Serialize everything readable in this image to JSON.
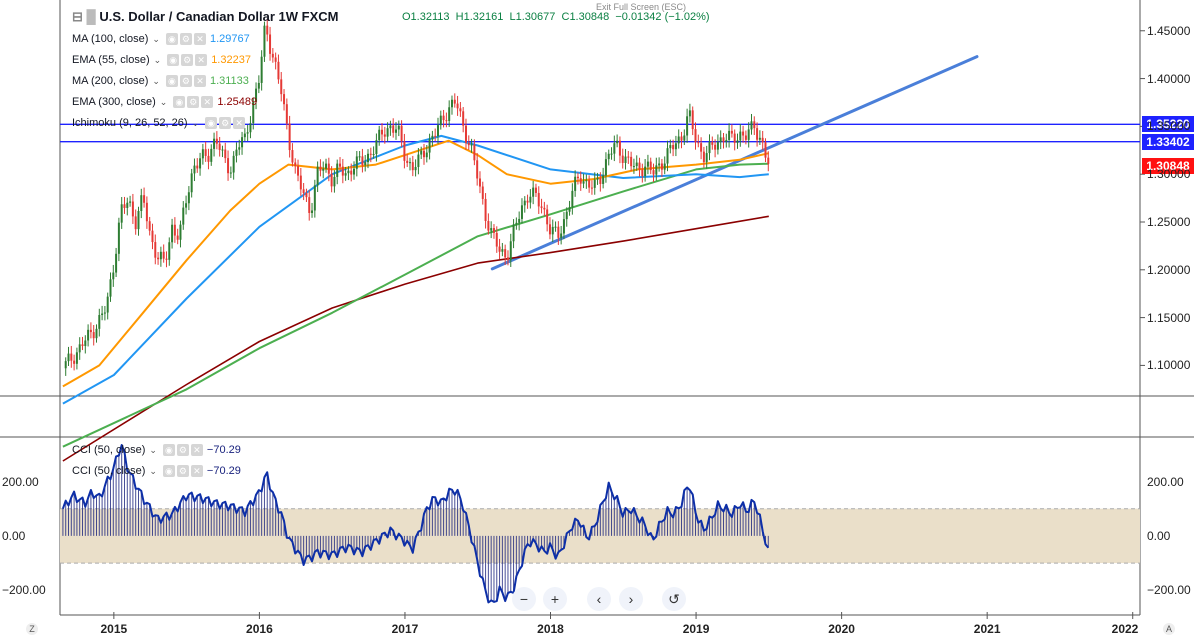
{
  "header": {
    "title": "U.S. Dollar / Canadian Dollar",
    "interval": "1W",
    "source": "FXCM",
    "open": "O1.32113",
    "high": "H1.32161",
    "low": "L1.30677",
    "close": "C1.30848",
    "change": "−0.01342 (−1.02%)",
    "exit_fullscreen": "Exit Full Screen (ESC)"
  },
  "indicators": [
    {
      "label": "MA (100, close)",
      "value": "1.29767",
      "color": "#2196f3"
    },
    {
      "label": "EMA (55, close)",
      "value": "1.32237",
      "color": "#ff9800"
    },
    {
      "label": "MA (200, close)",
      "value": "1.31133",
      "color": "#4caf50"
    },
    {
      "label": "EMA (300, close)",
      "value": "1.25489",
      "color": "#8b0000"
    },
    {
      "label": "Ichimoku (9, 26, 52, 26)",
      "value": "",
      "color": "#888888"
    }
  ],
  "cci_indicators": [
    {
      "label": "CCI (50, close)",
      "value": "−70.29"
    },
    {
      "label": "CCI (50, close)",
      "value": "−70.29"
    }
  ],
  "price_badges": [
    {
      "value": "1.35220",
      "color": "#1e22ff",
      "price": 1.3522
    },
    {
      "value": "1.33402",
      "color": "#1e22ff",
      "price": 1.33402
    },
    {
      "value": "1.30848",
      "color": "#ff1111",
      "price": 1.30848
    }
  ],
  "nav": {
    "zoom_out": "−",
    "zoom_in": "+",
    "back": "‹",
    "forward": "›",
    "reset": "↺"
  },
  "corners": {
    "left": "Z",
    "right": "A"
  },
  "chart_data": {
    "type": "candlestick",
    "price_axis": {
      "ticks": [
        "1.45000",
        "1.40000",
        "1.35000",
        "1.30000",
        "1.25000",
        "1.20000",
        "1.15000",
        "1.10000"
      ],
      "ylim": [
        1.068,
        1.478
      ]
    },
    "x_axis": {
      "ticks": [
        "2015",
        "2016",
        "2017",
        "2018",
        "2019",
        "2020",
        "2021",
        "2022"
      ],
      "xlim": [
        2014.63,
        2022.05
      ]
    },
    "horizontal_lines": [
      1.3522,
      1.33402
    ],
    "trendline": {
      "from": [
        2017.6,
        1.201
      ],
      "to": [
        2020.93,
        1.423
      ],
      "color": "#4a7fd9"
    },
    "close_series": [
      [
        2014.65,
        1.097
      ],
      [
        2014.75,
        1.115
      ],
      [
        2014.85,
        1.135
      ],
      [
        2014.95,
        1.16
      ],
      [
        2015.0,
        1.208
      ],
      [
        2015.05,
        1.262
      ],
      [
        2015.1,
        1.271
      ],
      [
        2015.15,
        1.252
      ],
      [
        2015.2,
        1.275
      ],
      [
        2015.25,
        1.235
      ],
      [
        2015.3,
        1.215
      ],
      [
        2015.35,
        1.205
      ],
      [
        2015.4,
        1.245
      ],
      [
        2015.45,
        1.235
      ],
      [
        2015.5,
        1.275
      ],
      [
        2015.55,
        1.31
      ],
      [
        2015.6,
        1.315
      ],
      [
        2015.65,
        1.32
      ],
      [
        2015.7,
        1.34
      ],
      [
        2015.75,
        1.315
      ],
      [
        2015.8,
        1.305
      ],
      [
        2015.85,
        1.33
      ],
      [
        2015.9,
        1.335
      ],
      [
        2015.95,
        1.37
      ],
      [
        2016.0,
        1.4
      ],
      [
        2016.04,
        1.455
      ],
      [
        2016.1,
        1.42
      ],
      [
        2016.15,
        1.385
      ],
      [
        2016.2,
        1.34
      ],
      [
        2016.25,
        1.3
      ],
      [
        2016.3,
        1.28
      ],
      [
        2016.35,
        1.262
      ],
      [
        2016.4,
        1.3
      ],
      [
        2016.45,
        1.31
      ],
      [
        2016.5,
        1.295
      ],
      [
        2016.55,
        1.305
      ],
      [
        2016.6,
        1.3
      ],
      [
        2016.65,
        1.31
      ],
      [
        2016.7,
        1.312
      ],
      [
        2016.75,
        1.32
      ],
      [
        2016.8,
        1.33
      ],
      [
        2016.85,
        1.345
      ],
      [
        2016.9,
        1.35
      ],
      [
        2016.95,
        1.345
      ],
      [
        2017.0,
        1.32
      ],
      [
        2017.05,
        1.305
      ],
      [
        2017.1,
        1.315
      ],
      [
        2017.15,
        1.33
      ],
      [
        2017.2,
        1.34
      ],
      [
        2017.25,
        1.355
      ],
      [
        2017.3,
        1.37
      ],
      [
        2017.35,
        1.375
      ],
      [
        2017.4,
        1.35
      ],
      [
        2017.45,
        1.33
      ],
      [
        2017.5,
        1.295
      ],
      [
        2017.55,
        1.26
      ],
      [
        2017.6,
        1.235
      ],
      [
        2017.65,
        1.22
      ],
      [
        2017.7,
        1.215
      ],
      [
        2017.75,
        1.24
      ],
      [
        2017.8,
        1.265
      ],
      [
        2017.85,
        1.28
      ],
      [
        2017.9,
        1.275
      ],
      [
        2017.95,
        1.265
      ],
      [
        2018.0,
        1.24
      ],
      [
        2018.05,
        1.235
      ],
      [
        2018.1,
        1.255
      ],
      [
        2018.15,
        1.28
      ],
      [
        2018.2,
        1.3
      ],
      [
        2018.25,
        1.29
      ],
      [
        2018.3,
        1.285
      ],
      [
        2018.35,
        1.3
      ],
      [
        2018.4,
        1.32
      ],
      [
        2018.45,
        1.33
      ],
      [
        2018.5,
        1.32
      ],
      [
        2018.55,
        1.31
      ],
      [
        2018.6,
        1.305
      ],
      [
        2018.65,
        1.31
      ],
      [
        2018.7,
        1.3
      ],
      [
        2018.75,
        1.31
      ],
      [
        2018.8,
        1.32
      ],
      [
        2018.85,
        1.33
      ],
      [
        2018.9,
        1.34
      ],
      [
        2018.95,
        1.362
      ],
      [
        2019.0,
        1.335
      ],
      [
        2019.05,
        1.32
      ],
      [
        2019.1,
        1.325
      ],
      [
        2019.15,
        1.335
      ],
      [
        2019.2,
        1.34
      ],
      [
        2019.25,
        1.335
      ],
      [
        2019.3,
        1.343
      ],
      [
        2019.35,
        1.34
      ],
      [
        2019.4,
        1.35
      ],
      [
        2019.45,
        1.335
      ],
      [
        2019.5,
        1.308
      ]
    ],
    "ma100": [
      [
        2014.65,
        1.06
      ],
      [
        2015.0,
        1.09
      ],
      [
        2015.5,
        1.17
      ],
      [
        2016.0,
        1.245
      ],
      [
        2016.5,
        1.3
      ],
      [
        2017.0,
        1.33
      ],
      [
        2017.25,
        1.34
      ],
      [
        2017.5,
        1.33
      ],
      [
        2018.0,
        1.305
      ],
      [
        2018.5,
        1.296
      ],
      [
        2019.0,
        1.3
      ],
      [
        2019.3,
        1.297
      ],
      [
        2019.5,
        1.3
      ]
    ],
    "ema55": [
      [
        2014.65,
        1.078
      ],
      [
        2014.9,
        1.1
      ],
      [
        2015.2,
        1.155
      ],
      [
        2015.5,
        1.21
      ],
      [
        2015.8,
        1.262
      ],
      [
        2016.0,
        1.29
      ],
      [
        2016.2,
        1.31
      ],
      [
        2016.5,
        1.305
      ],
      [
        2016.8,
        1.31
      ],
      [
        2017.0,
        1.32
      ],
      [
        2017.3,
        1.335
      ],
      [
        2017.5,
        1.32
      ],
      [
        2017.7,
        1.3
      ],
      [
        2018.0,
        1.29
      ],
      [
        2018.3,
        1.295
      ],
      [
        2018.6,
        1.305
      ],
      [
        2019.0,
        1.31
      ],
      [
        2019.3,
        1.315
      ],
      [
        2019.5,
        1.322
      ]
    ],
    "ma200": [
      [
        2014.65,
        1.015
      ],
      [
        2015.5,
        1.075
      ],
      [
        2016.0,
        1.118
      ],
      [
        2016.5,
        1.155
      ],
      [
        2017.0,
        1.195
      ],
      [
        2017.5,
        1.235
      ],
      [
        2018.0,
        1.258
      ],
      [
        2018.5,
        1.282
      ],
      [
        2019.0,
        1.305
      ],
      [
        2019.3,
        1.31
      ],
      [
        2019.5,
        1.311
      ]
    ],
    "ema300": [
      [
        2014.65,
        1.0
      ],
      [
        2015.5,
        1.08
      ],
      [
        2016.0,
        1.125
      ],
      [
        2016.5,
        1.16
      ],
      [
        2017.0,
        1.185
      ],
      [
        2017.5,
        1.207
      ],
      [
        2018.0,
        1.218
      ],
      [
        2018.5,
        1.23
      ],
      [
        2019.0,
        1.243
      ],
      [
        2019.5,
        1.256
      ]
    ],
    "cci": {
      "ticks": [
        "200.00",
        "0.00",
        "−200.00"
      ],
      "ylim": [
        -280,
        360
      ],
      "band": [
        -100,
        100
      ],
      "values": [
        [
          2014.65,
          100
        ],
        [
          2014.72,
          150
        ],
        [
          2014.8,
          120
        ],
        [
          2014.85,
          160
        ],
        [
          2014.9,
          140
        ],
        [
          2015.0,
          250
        ],
        [
          2015.05,
          340
        ],
        [
          2015.1,
          240
        ],
        [
          2015.2,
          140
        ],
        [
          2015.3,
          60
        ],
        [
          2015.4,
          80
        ],
        [
          2015.5,
          150
        ],
        [
          2015.6,
          140
        ],
        [
          2015.7,
          120
        ],
        [
          2015.8,
          110
        ],
        [
          2015.9,
          90
        ],
        [
          2016.0,
          160
        ],
        [
          2016.05,
          230
        ],
        [
          2016.1,
          140
        ],
        [
          2016.15,
          80
        ],
        [
          2016.2,
          -10
        ],
        [
          2016.25,
          -50
        ],
        [
          2016.3,
          -90
        ],
        [
          2016.35,
          -80
        ],
        [
          2016.4,
          -60
        ],
        [
          2016.5,
          -70
        ],
        [
          2016.6,
          -40
        ],
        [
          2016.7,
          -60
        ],
        [
          2016.8,
          -20
        ],
        [
          2016.9,
          20
        ],
        [
          2017.0,
          -20
        ],
        [
          2017.05,
          -50
        ],
        [
          2017.1,
          20
        ],
        [
          2017.15,
          100
        ],
        [
          2017.2,
          140
        ],
        [
          2017.25,
          120
        ],
        [
          2017.3,
          160
        ],
        [
          2017.35,
          170
        ],
        [
          2017.4,
          110
        ],
        [
          2017.45,
          10
        ],
        [
          2017.5,
          -100
        ],
        [
          2017.55,
          -200
        ],
        [
          2017.6,
          -260
        ],
        [
          2017.65,
          -200
        ],
        [
          2017.7,
          -230
        ],
        [
          2017.75,
          -190
        ],
        [
          2017.8,
          -100
        ],
        [
          2017.85,
          -20
        ],
        [
          2017.9,
          -30
        ],
        [
          2017.95,
          -60
        ],
        [
          2018.0,
          -40
        ],
        [
          2018.05,
          -80
        ],
        [
          2018.1,
          -20
        ],
        [
          2018.15,
          40
        ],
        [
          2018.2,
          60
        ],
        [
          2018.25,
          -10
        ],
        [
          2018.3,
          30
        ],
        [
          2018.35,
          110
        ],
        [
          2018.4,
          180
        ],
        [
          2018.45,
          140
        ],
        [
          2018.5,
          80
        ],
        [
          2018.55,
          100
        ],
        [
          2018.6,
          70
        ],
        [
          2018.65,
          40
        ],
        [
          2018.7,
          -20
        ],
        [
          2018.75,
          40
        ],
        [
          2018.8,
          90
        ],
        [
          2018.85,
          80
        ],
        [
          2018.9,
          120
        ],
        [
          2018.95,
          200
        ],
        [
          2019.0,
          80
        ],
        [
          2019.05,
          20
        ],
        [
          2019.1,
          60
        ],
        [
          2019.15,
          110
        ],
        [
          2019.2,
          100
        ],
        [
          2019.25,
          80
        ],
        [
          2019.3,
          120
        ],
        [
          2019.35,
          90
        ],
        [
          2019.4,
          130
        ],
        [
          2019.45,
          40
        ],
        [
          2019.5,
          -70
        ]
      ]
    }
  }
}
